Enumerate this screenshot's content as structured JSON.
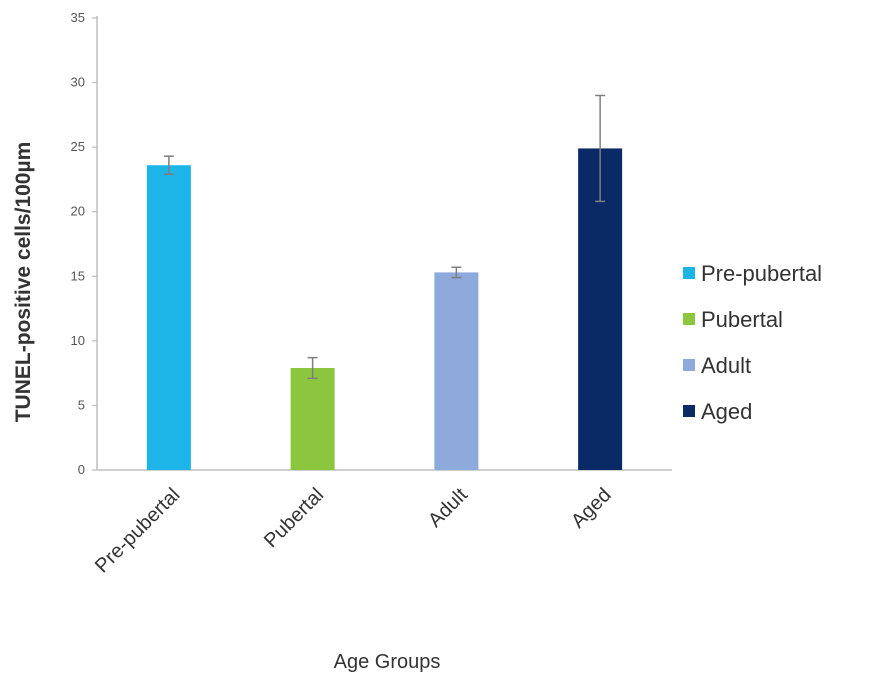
{
  "chart_data": {
    "type": "bar",
    "title": "",
    "xlabel": "Age Groups",
    "ylabel": "TUNEL-positive cells/100µm",
    "ylim": [
      0,
      35
    ],
    "yticks": [
      0,
      5,
      10,
      15,
      20,
      25,
      30,
      35
    ],
    "categories": [
      "Pre-pubertal",
      "Pubertal",
      "Adult",
      "Aged"
    ],
    "values": [
      23.6,
      7.9,
      15.3,
      24.9
    ],
    "errors": [
      0.7,
      0.8,
      0.4,
      4.1
    ],
    "colors": [
      "#1DB4E8",
      "#8CC63E",
      "#8EA9DB",
      "#0A2A66"
    ],
    "error_bar_color": "#7f7f7f",
    "axis_color": "#bfbfbf",
    "grid": false,
    "legend_position": "right",
    "legend": [
      "Pre-pubertal",
      "Pubertal",
      "Adult",
      "Aged"
    ]
  }
}
